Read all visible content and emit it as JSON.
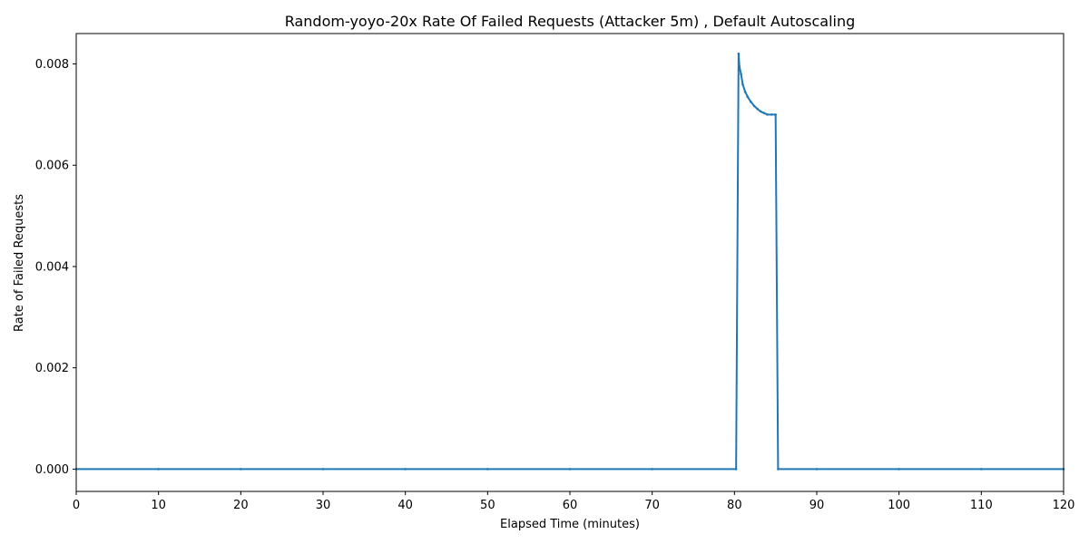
{
  "chart_data": {
    "type": "line",
    "title": "Random-yoyo-20x Rate Of Failed Requests (Attacker 5m) , Default Autoscaling",
    "xlabel": "Elapsed Time (minutes)",
    "ylabel": "Rate of Failed Requests",
    "xlim": [
      0,
      120
    ],
    "ylim": [
      -0.00044,
      0.0086
    ],
    "xticks": [
      0,
      10,
      20,
      30,
      40,
      50,
      60,
      70,
      80,
      90,
      100,
      110,
      120
    ],
    "xtick_labels": [
      "0",
      "10",
      "20",
      "30",
      "40",
      "50",
      "60",
      "70",
      "80",
      "90",
      "100",
      "110",
      "120"
    ],
    "yticks": [
      0.0,
      0.002,
      0.004,
      0.006,
      0.008
    ],
    "ytick_labels": [
      "0.000",
      "0.002",
      "0.004",
      "0.006",
      "0.008"
    ],
    "grid": false,
    "line_color": "#1f77b4",
    "series": [
      {
        "x": [
          0,
          10,
          20,
          30,
          40,
          50,
          60,
          70,
          80.2,
          80.5,
          80.6,
          80.8,
          81.0,
          81.3,
          81.6,
          82.0,
          82.4,
          82.8,
          83.2,
          83.6,
          84.0,
          84.5,
          85.0,
          85.3,
          90,
          100,
          110,
          120
        ],
        "y": [
          0,
          0,
          0,
          0,
          0,
          0,
          0,
          0,
          0,
          0.0082,
          0.00795,
          0.0078,
          0.0076,
          0.00745,
          0.00735,
          0.00725,
          0.00717,
          0.00711,
          0.00706,
          0.00703,
          0.007,
          0.007,
          0.007,
          0,
          0,
          0,
          0,
          0
        ]
      }
    ]
  }
}
